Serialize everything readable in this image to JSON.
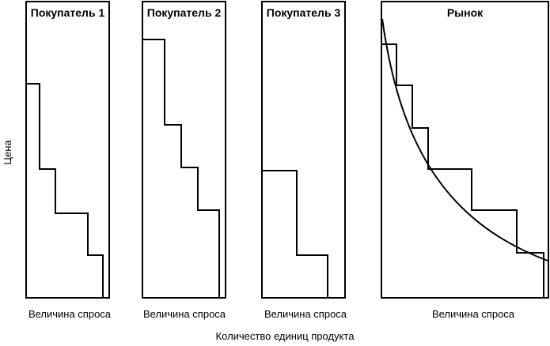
{
  "panels": [
    {
      "title": "Покупатель 1",
      "xlabel": "Величина спроса"
    },
    {
      "title": "Покупатель 2",
      "xlabel": "Величина спроса"
    },
    {
      "title": "Покупатель 3",
      "xlabel": "Величина спроса"
    },
    {
      "title": "Рынок",
      "xlabel": "Величина спроса"
    }
  ],
  "axis": {
    "ylabel": "Цена",
    "xlabel_common": "Количество единиц продукта"
  }
}
